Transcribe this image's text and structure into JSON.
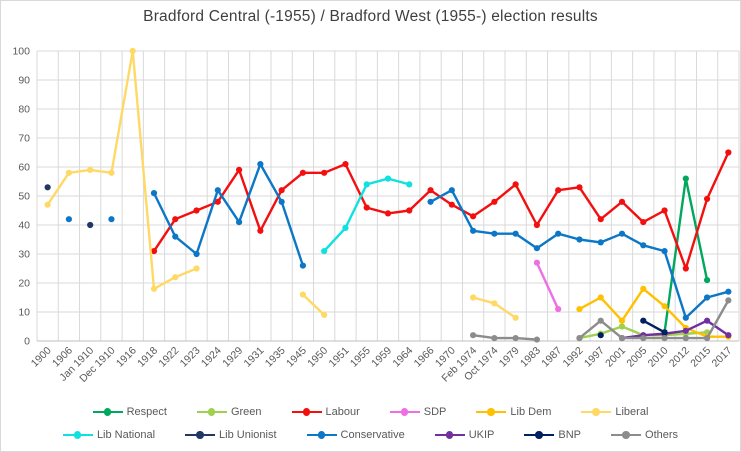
{
  "title": "Bradford Central (-1955) / Bradford West (1955-) election results",
  "colors": {
    "background": "#FFFFFF",
    "border": "#D9D9D9",
    "grid": "#D9D9D9",
    "axis_line": "#BFBFBF",
    "axis_text": "#595959",
    "title_text": "#3F3F3F"
  },
  "chart_data": {
    "type": "line",
    "title": "Bradford Central (-1955) / Bradford West (1955-) election results",
    "xlabel": "",
    "ylabel": "",
    "ylim": [
      0,
      100
    ],
    "ytick_labels": [
      "0",
      "10",
      "20",
      "30",
      "40",
      "50",
      "60",
      "70",
      "80",
      "90",
      "100"
    ],
    "grid": true,
    "legend_position": "bottom",
    "marker": "circle",
    "categories": [
      "1900",
      "1906",
      "Jan 1910",
      "Dec 1910",
      "1916",
      "1918",
      "1922",
      "1923",
      "1924",
      "1929",
      "1931",
      "1935",
      "1945",
      "1950",
      "1951",
      "1955",
      "1959",
      "1964",
      "1966",
      "1970",
      "Feb 1974",
      "Oct 1974",
      "1979",
      "1983",
      "1987",
      "1992",
      "1997",
      "2001",
      "2005",
      "2010",
      "2012",
      "2015",
      "2017"
    ],
    "series": [
      {
        "name": "Respect",
        "color": "#00A85D",
        "values": [
          null,
          null,
          null,
          null,
          null,
          null,
          null,
          null,
          null,
          null,
          null,
          null,
          null,
          null,
          null,
          null,
          null,
          null,
          null,
          null,
          null,
          null,
          null,
          null,
          null,
          null,
          null,
          null,
          null,
          3,
          56,
          21,
          null
        ]
      },
      {
        "name": "Green",
        "color": "#9FD04E",
        "values": [
          null,
          null,
          null,
          null,
          null,
          null,
          null,
          null,
          null,
          null,
          null,
          null,
          null,
          null,
          null,
          null,
          null,
          null,
          null,
          null,
          null,
          null,
          null,
          null,
          null,
          1,
          2.5,
          5,
          2,
          2,
          2.5,
          3,
          null
        ]
      },
      {
        "name": "Labour",
        "color": "#F40F0F",
        "values": [
          null,
          null,
          null,
          null,
          null,
          31,
          42,
          45,
          48,
          59,
          38,
          52,
          58,
          58,
          61,
          46,
          44,
          45,
          52,
          47,
          43,
          48,
          54,
          40,
          52,
          53,
          42,
          48,
          41,
          45,
          25,
          49,
          65
        ]
      },
      {
        "name": "SDP",
        "color": "#EE6EE4",
        "values": [
          null,
          null,
          null,
          null,
          null,
          null,
          null,
          null,
          null,
          null,
          null,
          null,
          null,
          null,
          null,
          null,
          null,
          null,
          null,
          null,
          null,
          null,
          null,
          27,
          11,
          null,
          null,
          null,
          null,
          null,
          null,
          null,
          null
        ]
      },
      {
        "name": "Lib Dem",
        "color": "#FFC000",
        "values": [
          null,
          null,
          null,
          null,
          null,
          null,
          null,
          null,
          null,
          null,
          null,
          null,
          null,
          null,
          null,
          null,
          null,
          null,
          null,
          null,
          null,
          null,
          null,
          null,
          null,
          11,
          15,
          7,
          18,
          12,
          4.5,
          1.5,
          1.5
        ]
      },
      {
        "name": "Liberal",
        "color": "#FFD966",
        "values": [
          47,
          58,
          59,
          58,
          100,
          18,
          22,
          25,
          null,
          null,
          null,
          null,
          16,
          9,
          null,
          null,
          null,
          null,
          null,
          null,
          15,
          13,
          8,
          null,
          null,
          null,
          null,
          null,
          null,
          null,
          null,
          null,
          null
        ]
      },
      {
        "name": "Lib National",
        "color": "#0FE0E0",
        "values": [
          null,
          null,
          null,
          null,
          null,
          null,
          null,
          null,
          null,
          null,
          null,
          null,
          null,
          31,
          39,
          54,
          56,
          54,
          null,
          null,
          null,
          null,
          null,
          null,
          null,
          null,
          null,
          null,
          null,
          null,
          null,
          null,
          null
        ]
      },
      {
        "name": "Lib Unionist",
        "color": "#1F3864",
        "values": [
          53,
          null,
          40,
          null,
          null,
          null,
          null,
          null,
          null,
          null,
          null,
          null,
          null,
          null,
          null,
          null,
          null,
          null,
          null,
          null,
          null,
          null,
          null,
          null,
          null,
          null,
          null,
          null,
          null,
          null,
          null,
          null,
          null
        ]
      },
      {
        "name": "Conservative",
        "color": "#0C77C6",
        "values": [
          null,
          42,
          null,
          42,
          null,
          51,
          36,
          30,
          52,
          41,
          61,
          48,
          26,
          null,
          null,
          null,
          null,
          null,
          48,
          52,
          38,
          37,
          37,
          32,
          37,
          35,
          34,
          37,
          33,
          31,
          8,
          15,
          17
        ]
      },
      {
        "name": "UKIP",
        "color": "#7030A0",
        "values": [
          null,
          null,
          null,
          null,
          null,
          null,
          null,
          null,
          null,
          null,
          null,
          null,
          null,
          null,
          null,
          null,
          null,
          null,
          null,
          null,
          null,
          null,
          null,
          null,
          null,
          null,
          null,
          1,
          2,
          2.5,
          3.5,
          7,
          2
        ]
      },
      {
        "name": "BNP",
        "color": "#002060",
        "values": [
          null,
          null,
          null,
          null,
          null,
          null,
          null,
          null,
          null,
          null,
          null,
          null,
          null,
          null,
          null,
          null,
          null,
          null,
          null,
          null,
          null,
          null,
          null,
          null,
          null,
          null,
          2,
          null,
          7,
          3,
          null,
          null,
          null
        ]
      },
      {
        "name": "Others",
        "color": "#8C8C8C",
        "values": [
          null,
          null,
          null,
          null,
          null,
          null,
          null,
          null,
          null,
          null,
          null,
          null,
          null,
          null,
          null,
          null,
          null,
          null,
          null,
          null,
          2,
          1,
          1,
          0.5,
          null,
          1,
          7,
          1,
          1,
          1,
          1,
          1,
          14
        ]
      }
    ]
  }
}
